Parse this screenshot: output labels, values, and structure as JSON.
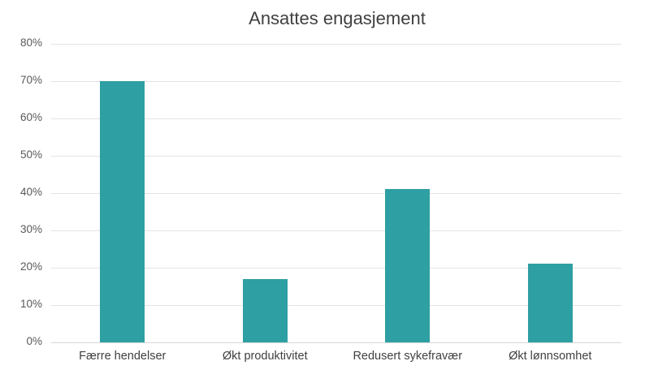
{
  "chart_data": {
    "type": "bar",
    "title": "Ansattes engasjement",
    "xlabel": "",
    "ylabel": "",
    "categories": [
      "Færre hendelser",
      "Økt produktivitet",
      "Redusert sykefravær",
      "Økt lønnsomhet"
    ],
    "values": [
      70,
      17,
      41,
      21
    ],
    "value_unit": "%",
    "ylim": [
      0,
      80
    ],
    "yticks": [
      "0%",
      "10%",
      "20%",
      "30%",
      "40%",
      "50%",
      "60%",
      "70%",
      "80%"
    ],
    "grid": true,
    "legend": null,
    "bar_color": "#2E9FA3"
  }
}
